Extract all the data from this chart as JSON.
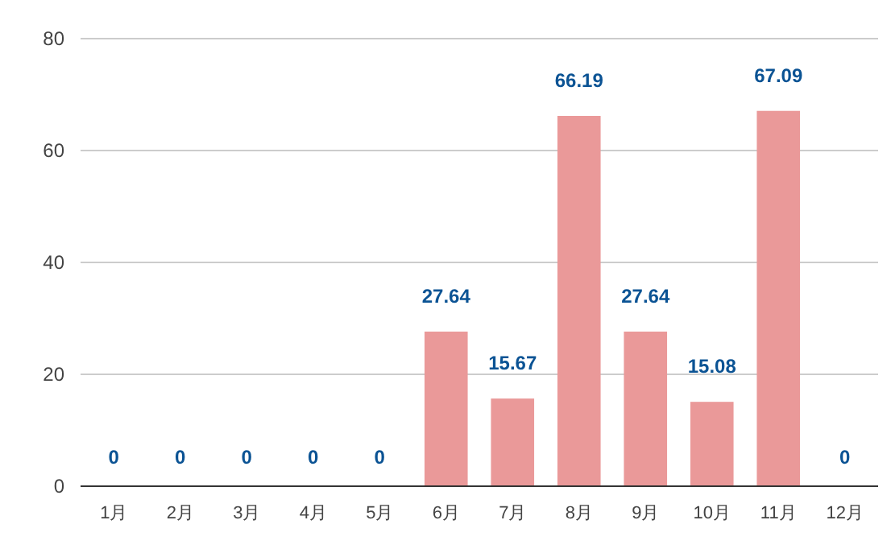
{
  "chart_data": {
    "type": "bar",
    "categories": [
      "1月",
      "2月",
      "3月",
      "4月",
      "5月",
      "6月",
      "7月",
      "8月",
      "9月",
      "10月",
      "11月",
      "12月"
    ],
    "values": [
      0,
      0,
      0,
      0,
      0,
      27.64,
      15.67,
      66.19,
      27.64,
      15.08,
      67.09,
      0
    ],
    "color": "#ea9999",
    "ylim": [
      0,
      80
    ],
    "yticks": [
      0,
      20,
      40,
      60,
      80
    ],
    "grid": "y",
    "data_labels": true
  }
}
